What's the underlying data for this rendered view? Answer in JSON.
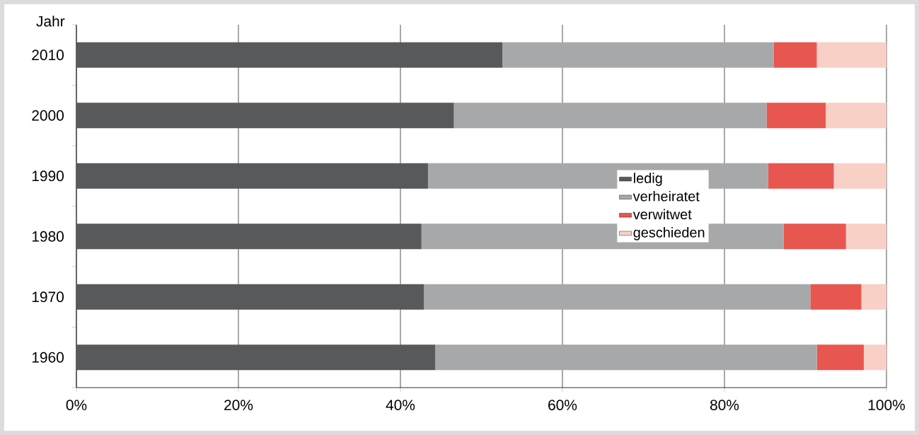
{
  "chart_data": {
    "type": "bar",
    "orientation": "horizontal",
    "stacked": true,
    "ylabel": "Jahr",
    "categories": [
      "2010",
      "2000",
      "1990",
      "1980",
      "1970",
      "1960"
    ],
    "series": [
      {
        "name": "ledig",
        "color": "#58595b",
        "values": [
          52.6,
          46.6,
          43.4,
          42.6,
          42.9,
          44.3
        ]
      },
      {
        "name": "verheiratet",
        "color": "#a7a8aa",
        "values": [
          33.5,
          38.6,
          42.0,
          44.7,
          47.7,
          47.1
        ]
      },
      {
        "name": "verwitwet",
        "color": "#e85650",
        "values": [
          5.3,
          7.3,
          8.1,
          7.7,
          6.3,
          5.8
        ]
      },
      {
        "name": "geschieden",
        "color": "#f8d0c6",
        "values": [
          8.6,
          7.5,
          6.5,
          5.0,
          3.1,
          2.8
        ]
      }
    ],
    "xlim": [
      0,
      100
    ],
    "xticks": [
      {
        "value": 0,
        "label": "0%"
      },
      {
        "value": 20,
        "label": "20%"
      },
      {
        "value": 40,
        "label": "40%"
      },
      {
        "value": 60,
        "label": "60%"
      },
      {
        "value": 80,
        "label": "80%"
      },
      {
        "value": 100,
        "label": "100%"
      }
    ],
    "grid": "x",
    "legend": "right"
  }
}
